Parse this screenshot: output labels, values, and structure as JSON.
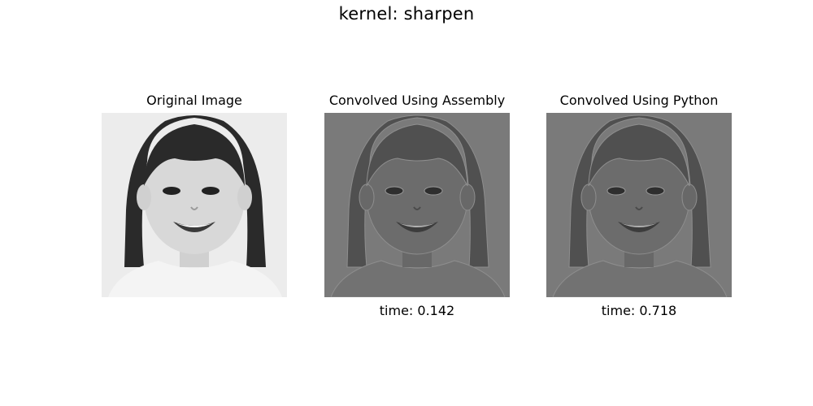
{
  "figure": {
    "suptitle": "kernel: sharpen"
  },
  "panels": [
    {
      "title": "Original Image",
      "xlabel": "",
      "image": "portrait-of-smiling-girl-grayscale",
      "tone": "original"
    },
    {
      "title": "Convolved Using Assembly",
      "xlabel": "time: 0.142",
      "image": "portrait-of-smiling-girl-sharpened",
      "tone": "convolved"
    },
    {
      "title": "Convolved Using Python",
      "xlabel": "time: 0.718",
      "image": "portrait-of-smiling-girl-sharpened",
      "tone": "convolved"
    }
  ],
  "colors": {
    "original_bg": "#ececec",
    "original_hair": "#2a2a2a",
    "original_skin": "#d8d8d8",
    "original_shirt": "#f4f4f4",
    "convolved_bg": "#7a7a7a",
    "convolved_hair": "#505050",
    "convolved_skin": "#6c6c6c",
    "convolved_shirt": "#727272",
    "convolved_edge": "#8e8e8e"
  }
}
